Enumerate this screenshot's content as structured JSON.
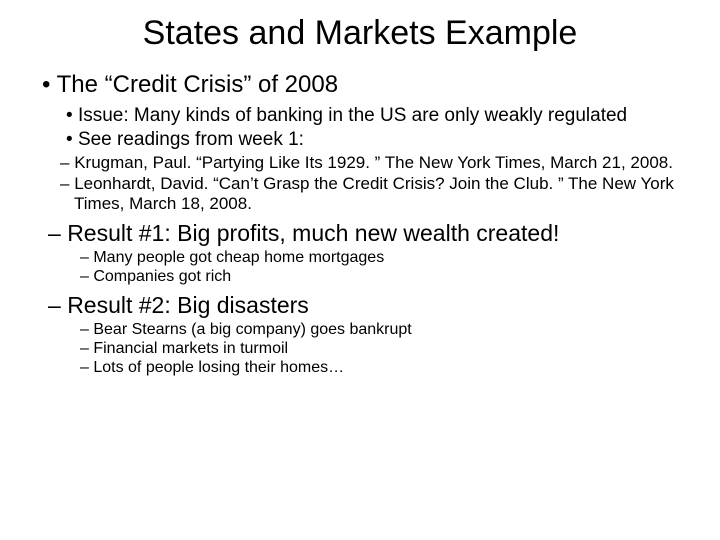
{
  "title": "States and Markets Example",
  "main": {
    "heading": "The “Credit Crisis” of 2008",
    "sub": [
      "Issue:  Many kinds of banking in the US are only weakly regulated",
      "See readings from week 1:"
    ],
    "readings": [
      "Krugman, Paul.  “Partying Like Its 1929. ”  The New York Times, March 21, 2008.",
      "Leonhardt, David.  “Can’t Grasp the Credit Crisis?  Join the Club. ”  The New York Times, March 18, 2008."
    ],
    "result1": {
      "heading": "Result #1:  Big profits, much new wealth created!",
      "items": [
        "Many people got cheap home mortgages",
        "Companies got rich"
      ]
    },
    "result2": {
      "heading": "Result #2:  Big disasters",
      "items": [
        "Bear Stearns (a big company) goes bankrupt",
        "Financial markets in turmoil",
        "Lots of people losing their homes…"
      ]
    }
  }
}
